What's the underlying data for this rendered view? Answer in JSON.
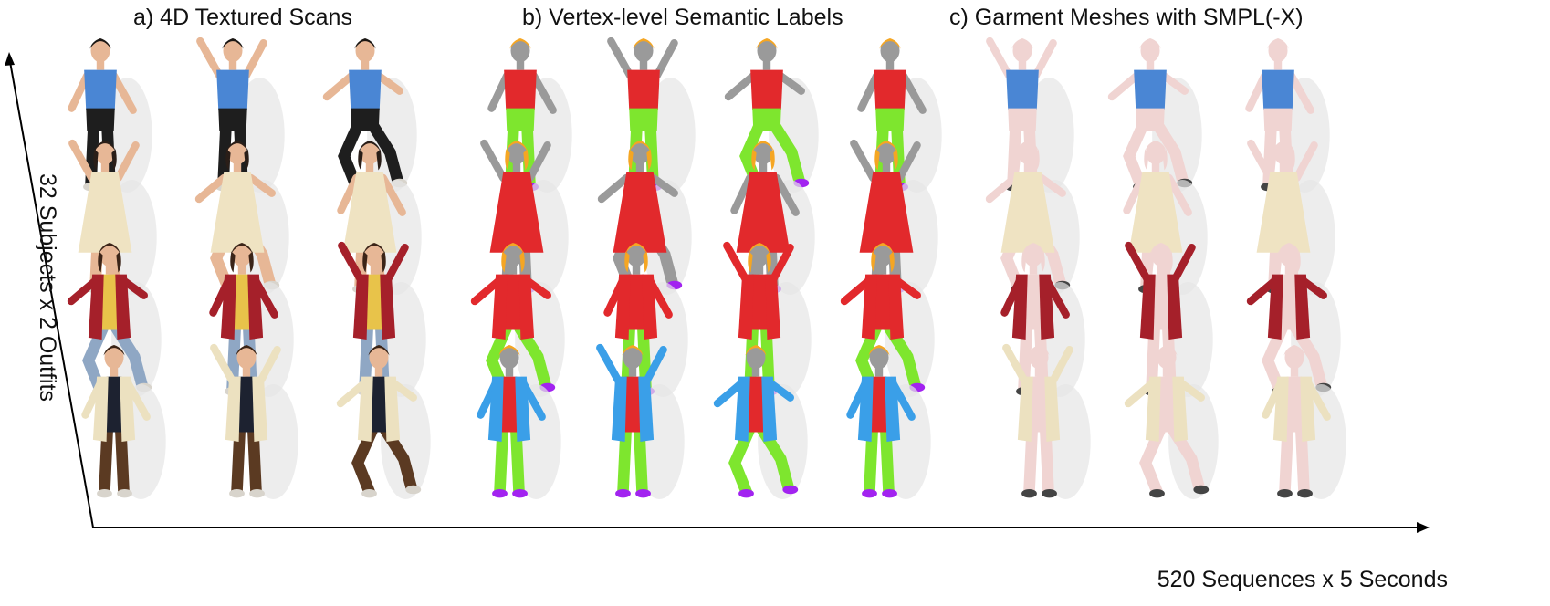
{
  "panels": [
    {
      "title": "a) 4D Textured Scans"
    },
    {
      "title": "b) Vertex-level Semantic Labels"
    },
    {
      "title": "c) Garment Meshes with SMPL(-X)"
    }
  ],
  "axes": {
    "y_label": "32 Subjects  x  2 Outfits",
    "x_label": "520 Sequences  x  5 Seconds"
  },
  "colors": {
    "label_hair": "#f5a623",
    "label_skin": "#9a9a9a",
    "label_upper": "#e2292c",
    "label_lower": "#7ee62e",
    "label_outer": "#3a9fe8",
    "label_shoes": "#a223f0",
    "smpl_body": "#f0d4d2",
    "shirt_blue": "#4a86d4",
    "plaid_red": "#a5202a",
    "floral_cream": "#efe3c2",
    "jacket_cream": "#ece1c0",
    "pants_brown": "#5b3a22",
    "shorts_black": "#1e1e1e",
    "shadow": "#e6e6e6"
  }
}
